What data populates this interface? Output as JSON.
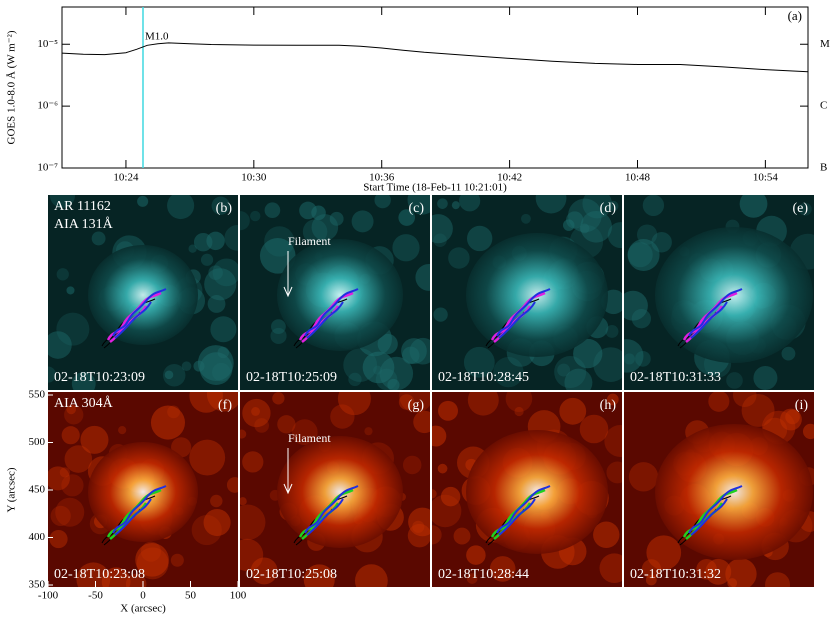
{
  "chart_data": {
    "type": "line",
    "ylabel": "GOES 1.0-8.0 Å (W m⁻²)",
    "xlabel": "Start Time (18-Feb-11 10:21:01)",
    "panel_label": "(a)",
    "annotation": {
      "text": "M1.0",
      "x": 24.8
    },
    "ylog": true,
    "xlim": [
      21,
      56
    ],
    "xticks": [
      {
        "value": 24,
        "label": "10:24"
      },
      {
        "value": 30,
        "label": "10:30"
      },
      {
        "value": 36,
        "label": "10:36"
      },
      {
        "value": 42,
        "label": "10:42"
      },
      {
        "value": 48,
        "label": "10:48"
      },
      {
        "value": 54,
        "label": "10:54"
      }
    ],
    "ylim": [
      1e-07,
      4e-05
    ],
    "yticks": [
      {
        "value": 1e-07,
        "label": "10⁻⁷"
      },
      {
        "value": 1e-06,
        "label": "10⁻⁶"
      },
      {
        "value": 1e-05,
        "label": "10⁻⁵"
      }
    ],
    "y2lim": [
      1e-07,
      4e-05
    ],
    "y2ticks": [
      {
        "value": 1e-07,
        "label": "B"
      },
      {
        "value": 1e-06,
        "label": "C"
      },
      {
        "value": 1e-05,
        "label": "M"
      }
    ],
    "event_line_color": "#3fd8e0",
    "x": [
      21,
      22,
      23,
      24,
      24.5,
      25,
      25.5,
      26,
      27,
      28,
      30,
      32,
      34,
      35,
      36,
      37,
      38,
      40,
      42,
      44,
      46,
      48,
      50,
      52,
      54,
      56
    ],
    "series": [
      {
        "color": "#000000",
        "values": [
          7.2e-06,
          6.9e-06,
          6.8e-06,
          7.3e-06,
          8.3e-06,
          9.6e-06,
          1.02e-05,
          1.05e-05,
          1.02e-05,
          9.9e-06,
          9.7e-06,
          9.6e-06,
          9.6e-06,
          9.3e-06,
          8.7e-06,
          8e-06,
          7.4e-06,
          6.6e-06,
          5.9e-06,
          5.3e-06,
          4.9e-06,
          4.7e-06,
          4.7e-06,
          4.3e-06,
          3.9e-06,
          3.6e-06
        ]
      }
    ]
  },
  "image_grid": {
    "xlabel": "X (arcsec)",
    "ylabel": "Y (arcsec)",
    "xlim": [
      -100,
      100
    ],
    "xticks": [
      -100,
      -50,
      0,
      50,
      100
    ],
    "ylim": [
      350,
      550
    ],
    "yticks": [
      350,
      400,
      450,
      500,
      550
    ],
    "rows": [
      {
        "titles": [
          "AR 11162",
          "AIA 131Å"
        ],
        "panels": [
          {
            "label": "(b)",
            "time": "02-18T10:23:09"
          },
          {
            "label": "(c)",
            "time": "02-18T10:25:09",
            "annotation": "Filament"
          },
          {
            "label": "(d)",
            "time": "02-18T10:28:45"
          },
          {
            "label": "(e)",
            "time": "02-18T10:31:33"
          }
        ]
      },
      {
        "titles": [
          "AIA 304Å"
        ],
        "panels": [
          {
            "label": "(f)",
            "time": "02-18T10:23:08"
          },
          {
            "label": "(g)",
            "time": "02-18T10:25:08",
            "annotation": "Filament"
          },
          {
            "label": "(h)",
            "time": "02-18T10:28:44"
          },
          {
            "label": "(i)",
            "time": "02-18T10:31:32"
          }
        ]
      }
    ]
  }
}
